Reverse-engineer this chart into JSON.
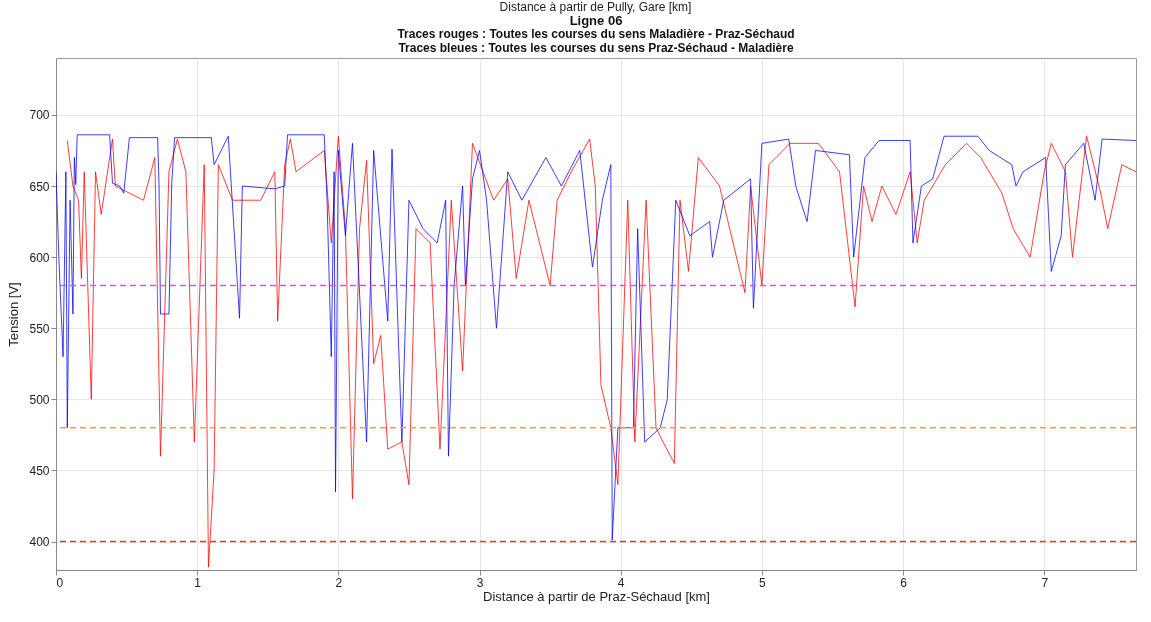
{
  "chart_data": {
    "type": "line",
    "title": "Ligne 06",
    "subtitle": "Traces rouges : Toutes les courses du sens Maladière - Praz-Séchaud\nTraces bleues : Toutes les courses du sens Praz-Séchaud - Maladière",
    "annotations": [
      "Distance à partir de Pully, Gare [km]"
    ],
    "xlabel": "Distance à partir de Praz-Séchaud [km]",
    "ylabel": "Tension [V]",
    "xlim": [
      0,
      7.65
    ],
    "xticks": [
      0,
      1,
      2,
      3,
      4,
      5,
      6,
      7
    ],
    "ylim": [
      380,
      740
    ],
    "yticks": [
      400,
      450,
      500,
      550,
      600,
      650,
      700
    ],
    "grid": true,
    "marker": "none",
    "line_style": "solid",
    "series": [
      {
        "color": "#ff0000",
        "x": [
          0.08,
          0.12,
          0.16,
          0.18,
          0.2,
          0.25,
          0.28,
          0.32,
          0.4,
          0.42,
          0.62,
          0.7,
          0.74,
          0.8,
          0.86,
          0.92,
          0.98,
          1.05,
          1.08,
          1.12,
          1.15,
          1.25,
          1.45,
          1.55,
          1.57,
          1.62,
          1.66,
          1.7,
          1.9,
          1.95,
          2.0,
          2.05,
          2.1,
          2.15,
          2.2,
          2.25,
          2.3,
          2.35,
          2.45,
          2.5,
          2.55,
          2.65,
          2.72,
          2.8,
          2.88,
          2.95,
          3.1,
          3.2,
          3.26,
          3.35,
          3.45,
          3.5,
          3.55,
          3.65,
          3.78,
          3.82,
          3.86,
          3.93,
          3.98,
          4.05,
          4.1,
          4.18,
          4.25,
          4.3,
          4.38,
          4.42,
          4.48,
          4.55,
          4.7,
          4.88,
          4.92,
          5.0,
          5.05,
          5.2,
          5.4,
          5.55,
          5.66,
          5.72,
          5.78,
          5.85,
          5.95,
          6.05,
          6.1,
          6.15,
          6.3,
          6.45,
          6.55,
          6.7,
          6.78,
          6.9,
          7.0,
          7.05,
          7.15,
          7.2,
          7.3,
          7.4,
          7.45,
          7.55,
          7.65
        ],
        "values": [
          682,
          650,
          640,
          585,
          660,
          500,
          660,
          630,
          683,
          650,
          640,
          670,
          460,
          660,
          683,
          660,
          470,
          665,
          382,
          450,
          665,
          640,
          640,
          660,
          555,
          665,
          683,
          660,
          675,
          610,
          685,
          620,
          430,
          620,
          668,
          525,
          545,
          465,
          470,
          440,
          620,
          610,
          465,
          640,
          520,
          680,
          640,
          655,
          585,
          640,
          600,
          580,
          640,
          660,
          683,
          650,
          510,
          480,
          440,
          640,
          470,
          640,
          480,
          470,
          455,
          640,
          590,
          670,
          650,
          575,
          650,
          580,
          665,
          680,
          680,
          660,
          565,
          650,
          625,
          650,
          630,
          660,
          610,
          640,
          665,
          680,
          670,
          645,
          620,
          600,
          660,
          680,
          660,
          600,
          685,
          645,
          620,
          665,
          660
        ]
      },
      {
        "color": "#0000ff",
        "x": [
          0.0,
          0.02,
          0.05,
          0.07,
          0.08,
          0.1,
          0.12,
          0.13,
          0.14,
          0.15,
          0.38,
          0.4,
          0.45,
          0.48,
          0.52,
          0.72,
          0.73,
          0.74,
          0.8,
          0.82,
          0.84,
          1.1,
          1.12,
          1.22,
          1.3,
          1.32,
          1.55,
          1.62,
          1.64,
          1.9,
          1.92,
          1.95,
          1.97,
          1.98,
          2.0,
          2.05,
          2.1,
          2.2,
          2.25,
          2.35,
          2.38,
          2.45,
          2.5,
          2.6,
          2.7,
          2.76,
          2.78,
          2.82,
          2.88,
          2.9,
          2.95,
          3.0,
          3.05,
          3.12,
          3.2,
          3.3,
          3.47,
          3.58,
          3.71,
          3.8,
          3.87,
          3.93,
          3.94,
          3.98,
          4.09,
          4.12,
          4.17,
          4.28,
          4.33,
          4.39,
          4.49,
          4.63,
          4.65,
          4.73,
          4.92,
          4.94,
          5.0,
          5.19,
          5.24,
          5.32,
          5.38,
          5.62,
          5.65,
          5.73,
          5.83,
          6.05,
          6.07,
          6.13,
          6.21,
          6.29,
          6.53,
          6.61,
          6.77,
          6.8,
          6.85,
          7.01,
          7.05,
          7.12,
          7.15,
          7.28,
          7.36,
          7.41,
          7.65
        ],
        "values": [
          660,
          600,
          530,
          660,
          480,
          640,
          560,
          670,
          651,
          686,
          686,
          652,
          650,
          645,
          684,
          684,
          650,
          560,
          560,
          652,
          684,
          684,
          665,
          685,
          557,
          650,
          648,
          650,
          686,
          686,
          640,
          530,
          660,
          435,
          675,
          615,
          680,
          470,
          675,
          555,
          676,
          470,
          640,
          620,
          610,
          640,
          460,
          580,
          650,
          580,
          655,
          675,
          640,
          550,
          660,
          640,
          670,
          650,
          675,
          593,
          640,
          665,
          401,
          480,
          480,
          620,
          470,
          480,
          500,
          640,
          615,
          625,
          600,
          640,
          655,
          564,
          680,
          683,
          650,
          625,
          675,
          672,
          600,
          670,
          682,
          682,
          610,
          650,
          655,
          685,
          685,
          675,
          665,
          650,
          660,
          670,
          590,
          615,
          665,
          680,
          640,
          683,
          682
        ]
      }
    ],
    "ref_lines": [
      {
        "axis": "y",
        "value": 580,
        "color": "#e34fe3",
        "line_style": "dashed"
      },
      {
        "axis": "y",
        "value": 480,
        "color": "#f2a03c",
        "line_style": "dashed"
      },
      {
        "axis": "y",
        "value": 400,
        "color": "#e8343c",
        "line_style": "dashed"
      }
    ]
  }
}
